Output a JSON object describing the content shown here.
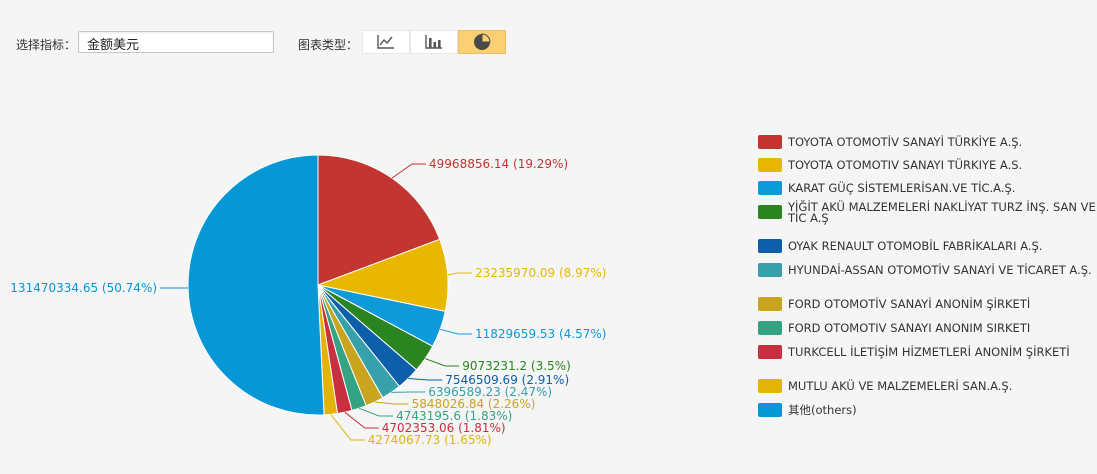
{
  "controls": {
    "metric_label": "选择指标：",
    "metric_value": "金额美元",
    "chart_type_label": "图表类型：",
    "chart_types": [
      "line-chart-icon",
      "bar-chart-icon",
      "pie-chart-icon"
    ],
    "active_type": "pie-chart-icon"
  },
  "chart_data": {
    "type": "pie",
    "slices": [
      {
        "label": "TOYOTA OTOMOTİV SANAYİ TÜRKİYE A.Ş.",
        "value": 49968856.14,
        "percent": "19.29%",
        "color": "#c23531"
      },
      {
        "label": "TOYOTA OTOMOTIV SANAYI TÜRKIYE A.S.",
        "value": 23235970.09,
        "percent": "8.97%",
        "color": "#e8b700"
      },
      {
        "label": "KARAT GÜÇ SİSTEMLERİSAN.VE TİC.A.Ş.",
        "value": 11829659.53,
        "percent": "4.57%",
        "color": "#0e99d8"
      },
      {
        "label": "YİĞİT AKÜ MALZEMELERİ NAKLİYAT TURZ İNŞ. SAN VE TİC A.Ş",
        "value": 9073231.2,
        "percent": "3.5%",
        "color": "#2a8521"
      },
      {
        "label": "OYAK RENAULT OTOMOBİL FABRİKALARI A.Ş.",
        "value": 7546509.69,
        "percent": "2.91%",
        "color": "#0c5fa8"
      },
      {
        "label": "HYUNDAİ-ASSAN OTOMOTİV SANAYİ VE TİCARET A.Ş.",
        "value": 6396589.23,
        "percent": "2.47%",
        "color": "#36a0ab"
      },
      {
        "label": "FORD OTOMOTİV SANAYİ ANONİM ŞİRKETİ",
        "value": 5848026.84,
        "percent": "2.26%",
        "color": "#c9a41f"
      },
      {
        "label": "FORD OTOMOTIV SANAYI ANONIM SIRKETI",
        "value": 4743195.6,
        "percent": "1.83%",
        "color": "#34a383"
      },
      {
        "label": "TURKCELL İLETİŞİM HİZMETLERİ ANONİM ŞİRKETİ",
        "value": 4702353.06,
        "percent": "1.81%",
        "color": "#c9303f"
      },
      {
        "label": "MUTLU AKÜ VE MALZEMELERİ SAN.A.Ş.",
        "value": 4274067.73,
        "percent": "1.65%",
        "color": "#e3b309"
      },
      {
        "label": "其他(others)",
        "value": 131470334.65,
        "percent": "50.74%",
        "color": "#0797d6"
      }
    ],
    "legend_position": "right",
    "start_angle": "12 o'clock",
    "direction": "clockwise"
  }
}
